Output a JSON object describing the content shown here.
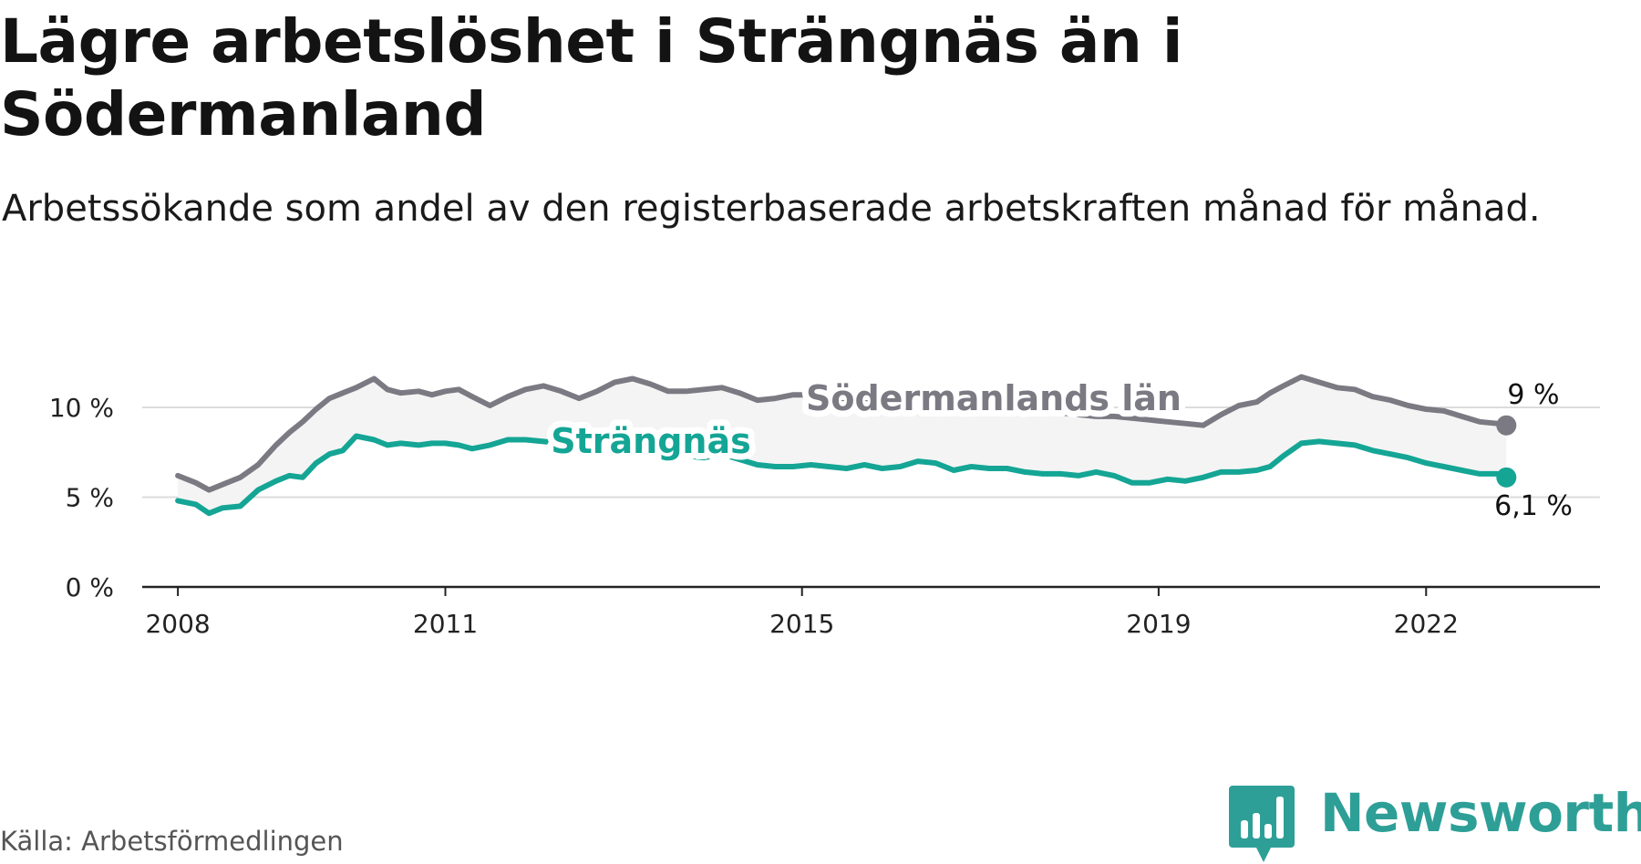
{
  "header": {
    "title": "Lägre arbetslöshet i Strängnäs än i Södermanland",
    "subtitle": "Arbetssökande som andel av den registerbaserade arbetskraften månad för månad."
  },
  "footer": {
    "source": "Källa: Arbetsförmedlingen",
    "brand": "Newsworthy"
  },
  "colors": {
    "sodermanland": "#7b7982",
    "strangnas": "#14a595",
    "band": "#f4f4f4",
    "grid": "#dcdcdc",
    "axis": "#222222",
    "brand": "#2e9f97"
  },
  "icons": {
    "brand_logo": "bar-chart-speech-bubble-icon"
  },
  "chart_data": {
    "type": "line",
    "title": "Lägre arbetslöshet i Strängnäs än i Södermanland",
    "subtitle": "Arbetssökande som andel av den registerbaserade arbetskraften månad för månad.",
    "xlabel": "",
    "ylabel": "",
    "ylim": [
      0,
      12.5
    ],
    "xlim": [
      2007.6,
      2023.95
    ],
    "grid": true,
    "y_ticks": [
      {
        "value": 0,
        "label": "0 %"
      },
      {
        "value": 5,
        "label": "5 %"
      },
      {
        "value": 10,
        "label": "10 %"
      }
    ],
    "x_ticks": [
      {
        "value": 2008,
        "label": "2008"
      },
      {
        "value": 2011,
        "label": "2011"
      },
      {
        "value": 2015,
        "label": "2015"
      },
      {
        "value": 2019,
        "label": "2019"
      },
      {
        "value": 2022,
        "label": "2022"
      }
    ],
    "series": [
      {
        "name": "Södermanlands län",
        "label": "Södermanlands län",
        "end_label": "9 %",
        "color": "#7b7982",
        "x": [
          2008.0,
          2008.2,
          2008.35,
          2008.5,
          2008.7,
          2008.9,
          2009.1,
          2009.25,
          2009.4,
          2009.55,
          2009.7,
          2009.85,
          2010.0,
          2010.2,
          2010.35,
          2010.5,
          2010.7,
          2010.85,
          2011.0,
          2011.15,
          2011.3,
          2011.5,
          2011.7,
          2011.9,
          2012.1,
          2012.3,
          2012.5,
          2012.7,
          2012.9,
          2013.1,
          2013.3,
          2013.5,
          2013.7,
          2013.9,
          2014.1,
          2014.3,
          2014.5,
          2014.7,
          2014.9,
          2015.1,
          2015.3,
          2015.5,
          2015.7,
          2015.9,
          2016.1,
          2016.3,
          2016.5,
          2016.7,
          2016.9,
          2017.1,
          2017.3,
          2017.5,
          2017.7,
          2017.9,
          2018.1,
          2018.3,
          2018.5,
          2018.7,
          2018.9,
          2019.1,
          2019.3,
          2019.5,
          2019.7,
          2019.9,
          2020.1,
          2020.25,
          2020.4,
          2020.6,
          2020.8,
          2021.0,
          2021.2,
          2021.4,
          2021.6,
          2021.8,
          2022.0,
          2022.2,
          2022.4,
          2022.6,
          2022.8,
          2022.9
        ],
        "values": [
          6.2,
          5.8,
          5.4,
          5.7,
          6.1,
          6.8,
          7.9,
          8.6,
          9.2,
          9.9,
          10.5,
          10.8,
          11.1,
          11.6,
          11.0,
          10.8,
          10.9,
          10.7,
          10.9,
          11.0,
          10.6,
          10.1,
          10.6,
          11.0,
          11.2,
          10.9,
          10.5,
          10.9,
          11.4,
          11.6,
          11.3,
          10.9,
          10.9,
          11.0,
          11.1,
          10.8,
          10.4,
          10.5,
          10.7,
          10.7,
          10.5,
          10.4,
          10.4,
          10.5,
          10.6,
          10.4,
          10.3,
          10.2,
          10.1,
          10.0,
          9.9,
          9.9,
          9.8,
          9.7,
          9.6,
          9.5,
          9.5,
          9.4,
          9.3,
          9.2,
          9.1,
          9.0,
          9.6,
          10.1,
          10.3,
          10.8,
          11.2,
          11.7,
          11.4,
          11.1,
          11.0,
          10.6,
          10.4,
          10.1,
          9.9,
          9.8,
          9.5,
          9.2,
          9.1,
          9.0
        ]
      },
      {
        "name": "Strängnäs",
        "label": "Strängnäs",
        "end_label": "6,1 %",
        "color": "#14a595",
        "x": [
          2008.0,
          2008.2,
          2008.35,
          2008.5,
          2008.7,
          2008.9,
          2009.1,
          2009.25,
          2009.4,
          2009.55,
          2009.7,
          2009.85,
          2010.0,
          2010.2,
          2010.35,
          2010.5,
          2010.7,
          2010.85,
          2011.0,
          2011.15,
          2011.3,
          2011.5,
          2011.7,
          2011.9,
          2012.1,
          2012.3,
          2012.5,
          2012.7,
          2012.9,
          2013.1,
          2013.3,
          2013.5,
          2013.7,
          2013.9,
          2014.1,
          2014.3,
          2014.5,
          2014.7,
          2014.9,
          2015.1,
          2015.3,
          2015.5,
          2015.7,
          2015.9,
          2016.1,
          2016.3,
          2016.5,
          2016.7,
          2016.9,
          2017.1,
          2017.3,
          2017.5,
          2017.7,
          2017.9,
          2018.1,
          2018.3,
          2018.5,
          2018.7,
          2018.9,
          2019.1,
          2019.3,
          2019.5,
          2019.7,
          2019.9,
          2020.1,
          2020.25,
          2020.4,
          2020.6,
          2020.8,
          2021.0,
          2021.2,
          2021.4,
          2021.6,
          2021.8,
          2022.0,
          2022.2,
          2022.4,
          2022.6,
          2022.8,
          2022.9
        ],
        "values": [
          4.8,
          4.6,
          4.1,
          4.4,
          4.5,
          5.4,
          5.9,
          6.2,
          6.1,
          6.9,
          7.4,
          7.6,
          8.4,
          8.2,
          7.9,
          8.0,
          7.9,
          8.0,
          8.0,
          7.9,
          7.7,
          7.9,
          8.2,
          8.2,
          8.1,
          8.0,
          7.9,
          7.8,
          7.7,
          7.6,
          7.5,
          7.4,
          7.3,
          7.2,
          7.4,
          7.1,
          6.8,
          6.7,
          6.7,
          6.8,
          6.7,
          6.6,
          6.8,
          6.6,
          6.7,
          7.0,
          6.9,
          6.5,
          6.7,
          6.6,
          6.6,
          6.4,
          6.3,
          6.3,
          6.2,
          6.4,
          6.2,
          5.8,
          5.8,
          6.0,
          5.9,
          6.1,
          6.4,
          6.4,
          6.5,
          6.7,
          7.3,
          8.0,
          8.1,
          8.0,
          7.9,
          7.6,
          7.4,
          7.2,
          6.9,
          6.7,
          6.5,
          6.3,
          6.3,
          6.1
        ]
      }
    ]
  }
}
